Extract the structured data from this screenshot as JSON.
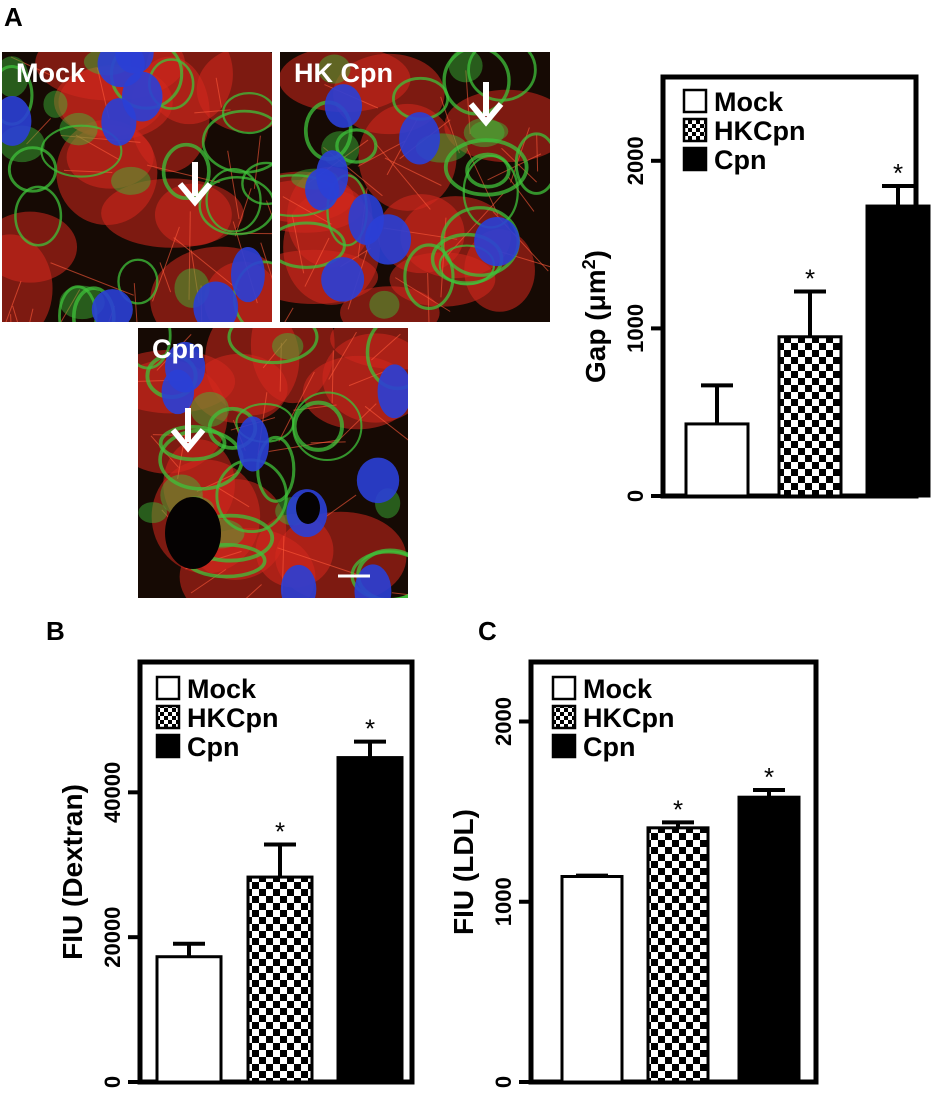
{
  "panels": {
    "a": "A",
    "b": "B",
    "c": "C"
  },
  "micrographs": [
    {
      "label": "Mock",
      "arrow": "down-arrow",
      "scale_bar": "scale-bar"
    },
    {
      "label": "HK Cpn",
      "arrow": "down-arrow",
      "scale_bar": "scale-bar"
    },
    {
      "label": "Cpn",
      "arrow": "down-arrow",
      "scale_bar": "scale-bar"
    }
  ],
  "colors": {
    "cell_red": "#d4281e",
    "cell_green": "#3fc23a",
    "nucleus_blue": "#2a3fd6",
    "background": "#160a04"
  },
  "chart_data": [
    {
      "type": "bar",
      "panel": "A",
      "categories": [
        "Mock",
        "HKCpn",
        "Cpn"
      ],
      "values": [
        430,
        950,
        1730
      ],
      "errors": [
        230,
        270,
        120
      ],
      "significance": [
        "",
        "*",
        "*"
      ],
      "legend": [
        "Mock",
        "HKCpn",
        "Cpn"
      ],
      "legend_position": "top-left",
      "fills": [
        "white",
        "checker",
        "black"
      ],
      "ylabel_text": "Gap (",
      "ylabel_unit": "μm",
      "ylabel_sup": "2",
      "ylabel_close": ")",
      "ylim": [
        0,
        2500
      ],
      "yticks": [
        0,
        1000,
        2000
      ],
      "ytick_labels": [
        "0",
        "1000",
        "2000"
      ]
    },
    {
      "type": "bar",
      "panel": "B",
      "categories": [
        "Mock",
        "HKCpn",
        "Cpn"
      ],
      "values": [
        17300,
        28300,
        44800
      ],
      "errors": [
        1800,
        4500,
        2200
      ],
      "significance": [
        "",
        "*",
        "*"
      ],
      "legend": [
        "Mock",
        "HKCpn",
        "Cpn"
      ],
      "legend_position": "top-left",
      "fills": [
        "white",
        "checker",
        "black"
      ],
      "ylabel": "FIU (Dextran)",
      "ylim": [
        0,
        58000
      ],
      "yticks": [
        0,
        20000,
        40000
      ],
      "ytick_labels": [
        "0",
        "20000",
        "40000"
      ]
    },
    {
      "type": "bar",
      "panel": "C",
      "categories": [
        "Mock",
        "HKCpn",
        "Cpn"
      ],
      "values": [
        1140,
        1410,
        1580
      ],
      "errors": [
        5,
        30,
        40
      ],
      "significance": [
        "",
        "*",
        "*"
      ],
      "legend": [
        "Mock",
        "HKCpn",
        "Cpn"
      ],
      "legend_position": "top-left",
      "fills": [
        "white",
        "checker",
        "black"
      ],
      "ylabel": "FIU (LDL)",
      "ylim": [
        0,
        2330
      ],
      "yticks": [
        0,
        1000,
        2000
      ],
      "ytick_labels": [
        "0",
        "1000",
        "2000"
      ]
    }
  ]
}
